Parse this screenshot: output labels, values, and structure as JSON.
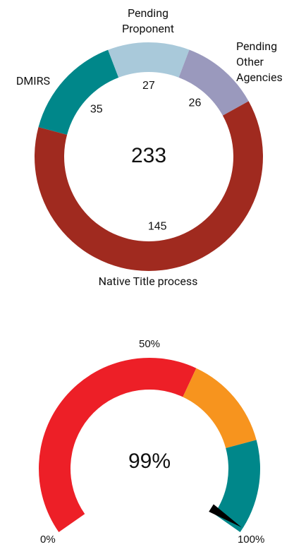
{
  "chart_data": [
    {
      "type": "donut",
      "categories": [
        "DMIRS",
        "Pending Proponent",
        "Pending Other Agencies",
        "Native Title process"
      ],
      "values": [
        35,
        27,
        26,
        145
      ],
      "colors": [
        "#00878a",
        "#a9c9da",
        "#9a99bd",
        "#a02a1f"
      ],
      "total": 233
    },
    {
      "type": "gauge",
      "value": 99,
      "value_label": "99%",
      "xlim": [
        0,
        100
      ],
      "xticks": [
        {
          "value": 0,
          "label": "0%"
        },
        {
          "value": 50,
          "label": "50%"
        },
        {
          "value": 100,
          "label": "100%"
        }
      ],
      "bands": [
        {
          "from": 0,
          "to": 60,
          "color": "#ed1f27"
        },
        {
          "from": 60,
          "to": 80,
          "color": "#f7941e"
        },
        {
          "from": 80,
          "to": 100,
          "color": "#00878a"
        }
      ]
    }
  ]
}
